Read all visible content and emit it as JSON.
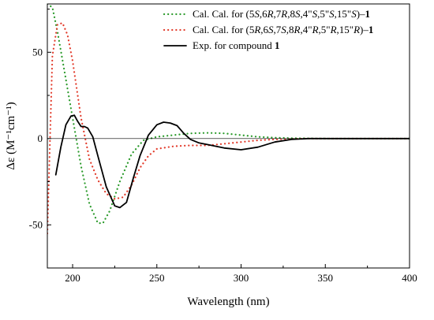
{
  "chart_data": {
    "type": "line",
    "title": "",
    "xlabel": "Wavelength (nm)",
    "ylabel": "Δε (M⁻¹cm⁻¹)",
    "xlim": [
      185,
      400
    ],
    "ylim": [
      -75,
      78
    ],
    "xticks": [
      200,
      250,
      300,
      350,
      400
    ],
    "yticks": [
      50,
      0,
      -50
    ],
    "grid": false,
    "legend_position": "top-right",
    "series": [
      {
        "name": "Cal. Cal. for (5S,6R,7R,8S,4\"S,5\"S,15\"S)–1",
        "legend_parts": [
          {
            "t": "Cal. Cal. for (5"
          },
          {
            "t": "S",
            "i": true
          },
          {
            "t": ",6"
          },
          {
            "t": "R",
            "i": true
          },
          {
            "t": ",7"
          },
          {
            "t": "R",
            "i": true
          },
          {
            "t": ",8"
          },
          {
            "t": "S",
            "i": true
          },
          {
            "t": ",4\""
          },
          {
            "t": "S",
            "i": true
          },
          {
            "t": ",5\""
          },
          {
            "t": "S",
            "i": true
          },
          {
            "t": ",15\""
          },
          {
            "t": "S",
            "i": true
          },
          {
            "t": ")–"
          },
          {
            "t": "1",
            "b": true
          }
        ],
        "color": "#2a9a2a",
        "style": "dotted",
        "x": [
          185,
          188,
          191,
          195,
          200,
          205,
          210,
          215,
          218,
          222,
          228,
          235,
          242,
          250,
          260,
          270,
          280,
          290,
          300,
          310,
          320,
          330,
          340,
          350,
          360,
          400
        ],
        "y": [
          78,
          76,
          62,
          40,
          12,
          -16,
          -38,
          -49,
          -49,
          -42,
          -25,
          -9,
          -1,
          1,
          2,
          3,
          3.3,
          3,
          2,
          1,
          0.5,
          0.2,
          0.1,
          0,
          0,
          0
        ]
      },
      {
        "name": "Cal. Cal. for (5R,6S,7S,8R,4\"R,5\"R,15\"R)–1",
        "legend_parts": [
          {
            "t": "Cal. Cal. for (5"
          },
          {
            "t": "R",
            "i": true
          },
          {
            "t": ",6"
          },
          {
            "t": "S",
            "i": true
          },
          {
            "t": ",7"
          },
          {
            "t": "S",
            "i": true
          },
          {
            "t": ",8"
          },
          {
            "t": "R",
            "i": true
          },
          {
            "t": ",4\""
          },
          {
            "t": "R",
            "i": true
          },
          {
            "t": ",5\""
          },
          {
            "t": "R",
            "i": true
          },
          {
            "t": ",15\""
          },
          {
            "t": "R",
            "i": true
          },
          {
            "t": ")–"
          },
          {
            "t": "1",
            "b": true
          }
        ],
        "color": "#e23a2a",
        "style": "dotted",
        "x": [
          185,
          188,
          191,
          194,
          197,
          200,
          205,
          210,
          215,
          220,
          225,
          230,
          235,
          240,
          245,
          250,
          260,
          270,
          280,
          290,
          300,
          310,
          320,
          330,
          340,
          350,
          360,
          400
        ],
        "y": [
          -55,
          48,
          66,
          67,
          60,
          45,
          12,
          -12,
          -24,
          -32,
          -35,
          -34,
          -27,
          -17,
          -10,
          -6,
          -4.5,
          -4,
          -4,
          -3,
          -2,
          -1,
          -0.5,
          -0.2,
          0,
          0,
          0,
          0
        ]
      },
      {
        "name": "Exp. for compound 1",
        "legend_parts": [
          {
            "t": "Exp. for compound "
          },
          {
            "t": "1",
            "b": true
          }
        ],
        "color": "#000000",
        "style": "solid",
        "x": [
          190,
          193,
          196,
          199,
          201,
          203,
          205,
          207,
          209,
          212,
          215,
          220,
          225,
          228,
          232,
          236,
          240,
          245,
          250,
          254,
          258,
          262,
          266,
          270,
          275,
          280,
          290,
          300,
          310,
          320,
          330,
          340,
          350,
          360,
          400
        ],
        "y": [
          -21,
          -5,
          8,
          13,
          13.5,
          10,
          7,
          7,
          6,
          1,
          -10,
          -28,
          -39,
          -40,
          -37,
          -23,
          -10,
          2,
          8,
          9.5,
          9,
          7.5,
          3,
          -0.5,
          -2.5,
          -3.5,
          -5.5,
          -6.5,
          -5,
          -2,
          -0.5,
          0,
          0,
          0,
          0
        ]
      }
    ]
  }
}
